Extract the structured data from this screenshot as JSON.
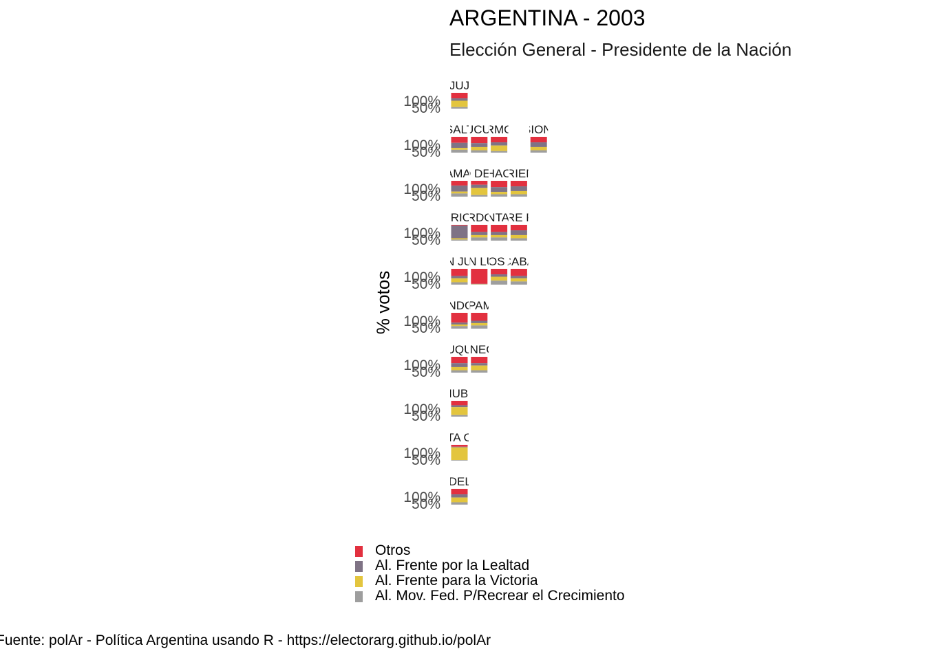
{
  "title": "ARGENTINA - 2003",
  "subtitle": "Elección General - Presidente de la Nación",
  "caption": "Fuente: polAr - Política Argentina usando R - https://electorarg.github.io/polAr",
  "colors": {
    "Otros": "#e2303f",
    "Al. Frente por la Lealtad": "#7f7385",
    "Al. Frente para la Victoria": "#e3c53e",
    "Al. Mov. Fed. P/Recrear el Crecimiento": "#9e9e9e"
  },
  "chart_data": {
    "type": "bar",
    "stacked": true,
    "layout": "geofacet",
    "ylabel": "% votos",
    "yticks": [
      "50%",
      "100%"
    ],
    "ylim": [
      0,
      1
    ],
    "legend_position": "bottom",
    "series_order": [
      "Otros",
      "Al. Frente por la Lealtad",
      "Al. Frente para la Victoria",
      "Al. Mov. Fed. P/Recrear el Crecimiento"
    ],
    "rows": [
      {
        "panels": [
          {
            "col": 0,
            "label": "JUJ",
            "values": [
              0.35,
              0.15,
              0.4,
              0.1
            ]
          }
        ]
      },
      {
        "panels": [
          {
            "col": 0,
            "label": "SALT",
            "values": [
              0.38,
              0.32,
              0.12,
              0.18
            ]
          },
          {
            "col": 1,
            "label": "TUCUM",
            "values": [
              0.4,
              0.25,
              0.2,
              0.15
            ]
          },
          {
            "col": 2,
            "label": "FORMOSA",
            "values": [
              0.35,
              0.2,
              0.35,
              0.1
            ]
          },
          {
            "col": 4,
            "label": "MISIONES",
            "values": [
              0.35,
              0.3,
              0.2,
              0.15
            ]
          }
        ]
      },
      {
        "panels": [
          {
            "col": 0,
            "label": "CATAMARCA",
            "values": [
              0.3,
              0.38,
              0.12,
              0.2
            ]
          },
          {
            "col": 1,
            "label": "SANTIAGO DEL ESTERO",
            "values": [
              0.25,
              0.2,
              0.45,
              0.1
            ]
          },
          {
            "col": 2,
            "label": "CHACO",
            "values": [
              0.4,
              0.3,
              0.15,
              0.15
            ]
          },
          {
            "col": 3,
            "label": "CORRIENTES",
            "values": [
              0.35,
              0.3,
              0.2,
              0.15
            ]
          }
        ]
      },
      {
        "panels": [
          {
            "col": 0,
            "label": "LA RIOJA",
            "values": [
              0.05,
              0.8,
              0.08,
              0.07
            ]
          },
          {
            "col": 1,
            "label": "CORDOBA",
            "values": [
              0.45,
              0.2,
              0.15,
              0.2
            ]
          },
          {
            "col": 2,
            "label": "SANTA FE",
            "values": [
              0.45,
              0.2,
              0.15,
              0.2
            ]
          },
          {
            "col": 3,
            "label": "ENTRE RIOS",
            "values": [
              0.35,
              0.3,
              0.2,
              0.15
            ]
          }
        ]
      },
      {
        "panels": [
          {
            "col": 0,
            "label": "SAN JUAN",
            "values": [
              0.45,
              0.15,
              0.25,
              0.15
            ]
          },
          {
            "col": 1,
            "label": "SAN LUIS",
            "values": [
              0.95,
              0.02,
              0.02,
              0.01
            ]
          },
          {
            "col": 2,
            "label": "BUENOS AIRES",
            "values": [
              0.35,
              0.15,
              0.25,
              0.25
            ]
          },
          {
            "col": 3,
            "label": "CABA",
            "values": [
              0.45,
              0.15,
              0.2,
              0.2
            ]
          }
        ]
      },
      {
        "panels": [
          {
            "col": 0,
            "label": "MENDOZA",
            "values": [
              0.62,
              0.12,
              0.1,
              0.16
            ]
          },
          {
            "col": 1,
            "label": "LA PAMPA",
            "values": [
              0.5,
              0.15,
              0.15,
              0.2
            ]
          }
        ]
      },
      {
        "panels": [
          {
            "col": 0,
            "label": "NEUQUEN",
            "values": [
              0.4,
              0.25,
              0.2,
              0.15
            ]
          },
          {
            "col": 1,
            "label": "RIO NEGRO",
            "values": [
              0.4,
              0.15,
              0.3,
              0.15
            ]
          }
        ]
      },
      {
        "panels": [
          {
            "col": 0,
            "label": "CHUBUT",
            "values": [
              0.28,
              0.12,
              0.5,
              0.1
            ]
          }
        ]
      },
      {
        "panels": [
          {
            "col": 0,
            "label": "SANTA CRUZ",
            "values": [
              0.12,
              0.04,
              0.8,
              0.04
            ]
          }
        ]
      },
      {
        "panels": [
          {
            "col": 0,
            "label": "TIERRA DEL FUEGO",
            "values": [
              0.35,
              0.2,
              0.3,
              0.15
            ]
          }
        ]
      }
    ]
  }
}
